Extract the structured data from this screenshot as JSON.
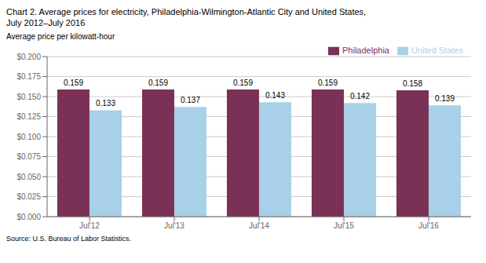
{
  "chart_data": {
    "type": "bar",
    "title": "Chart 2. Average prices for electricity, Philadelphia-Wilmington-Atlantic City and United States,",
    "subtitle": "July 2012–July 2016",
    "ylabel": "Average price per kilowatt-hour",
    "annotations": [
      "Source: U.S. Bureau of Labor Statistics."
    ],
    "categories": [
      "Jul'12",
      "Jul'13",
      "Jul'14",
      "Jul'15",
      "Jul'16"
    ],
    "series": [
      {
        "name": "Philadelphia",
        "color": "#7B3055",
        "values": [
          0.159,
          0.159,
          0.159,
          0.159,
          0.158
        ]
      },
      {
        "name": "United States",
        "color": "#A8D0E8",
        "values": [
          0.133,
          0.137,
          0.143,
          0.142,
          0.139
        ]
      }
    ],
    "ylim": [
      0.0,
      0.2
    ],
    "yticks": [
      {
        "value": 0.0,
        "label": "$0.000"
      },
      {
        "value": 0.025,
        "label": "$0.025"
      },
      {
        "value": 0.05,
        "label": "$0.050"
      },
      {
        "value": 0.075,
        "label": "$0.075"
      },
      {
        "value": 0.1,
        "label": "$0.100"
      },
      {
        "value": 0.125,
        "label": "$0.125"
      },
      {
        "value": 0.15,
        "label": "$0.150"
      },
      {
        "value": 0.175,
        "label": "$0.175"
      },
      {
        "value": 0.2,
        "label": "$0.200"
      }
    ],
    "grid": true,
    "legend": "upper right",
    "data_labels": true
  }
}
